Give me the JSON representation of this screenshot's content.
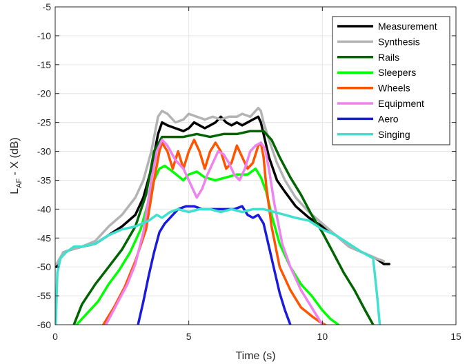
{
  "chart_data": {
    "type": "line",
    "title": "",
    "xlabel": "Time (s)",
    "ylabel": "L_AF - X (dB)",
    "ylabel_main": "L",
    "ylabel_sub": "AF",
    "ylabel_rest": " - X (dB)",
    "xlim": [
      0,
      15
    ],
    "ylim": [
      -60,
      -5
    ],
    "xticks": [
      0,
      5,
      10,
      15
    ],
    "yticks": [
      -60,
      -55,
      -50,
      -45,
      -40,
      -35,
      -30,
      -25,
      -20,
      -15,
      -10,
      -5
    ],
    "grid": true,
    "legend_position": "top-right",
    "series": [
      {
        "name": "Measurement",
        "color": "#000000",
        "x": [
          0.05,
          0.3,
          0.6,
          1.0,
          1.5,
          2.0,
          2.5,
          3.0,
          3.3,
          3.6,
          3.85,
          4.0,
          4.2,
          4.5,
          4.8,
          5.0,
          5.2,
          5.4,
          5.6,
          5.8,
          6.0,
          6.2,
          6.4,
          6.6,
          6.8,
          7.0,
          7.2,
          7.4,
          7.6,
          7.7,
          7.8,
          8.0,
          8.3,
          8.6,
          9.0,
          9.5,
          10.0,
          10.5,
          11.0,
          11.5,
          12.0,
          12.3,
          12.5
        ],
        "y": [
          -50,
          -47.5,
          -47,
          -46.5,
          -46,
          -44.5,
          -43,
          -41,
          -38,
          -33,
          -27,
          -25,
          -25.5,
          -26,
          -26.5,
          -26,
          -25,
          -25.5,
          -26,
          -25.5,
          -25,
          -24,
          -25,
          -25.5,
          -25,
          -25.5,
          -25,
          -24.5,
          -24,
          -25,
          -27,
          -31,
          -35,
          -37,
          -39.5,
          -41.5,
          -43,
          -44.5,
          -46.5,
          -47.5,
          -48.5,
          -49.5,
          -49.5
        ]
      },
      {
        "name": "Synthesis",
        "color": "#b3b3b3",
        "x": [
          0.05,
          0.3,
          0.6,
          1.0,
          1.5,
          2.0,
          2.5,
          3.0,
          3.3,
          3.6,
          3.85,
          4.0,
          4.2,
          4.5,
          4.8,
          5.0,
          5.3,
          5.6,
          5.9,
          6.2,
          6.5,
          6.8,
          7.0,
          7.3,
          7.6,
          7.7,
          7.8,
          8.0,
          8.3,
          8.6,
          9.0,
          9.5,
          10.0,
          10.5,
          11.0,
          11.5,
          12.0,
          12.3
        ],
        "y": [
          -49.5,
          -47.5,
          -47,
          -46.5,
          -45.5,
          -43,
          -41,
          -38,
          -35,
          -30,
          -24,
          -23,
          -23.5,
          -25,
          -24.5,
          -23.5,
          -24,
          -24.5,
          -24,
          -24.5,
          -24,
          -24,
          -23.5,
          -24,
          -22.5,
          -23,
          -25,
          -28,
          -32,
          -35,
          -38,
          -40.5,
          -42.5,
          -44.5,
          -46.5,
          -47.5,
          -48.5,
          -49
        ]
      },
      {
        "name": "Rails",
        "color": "#006400",
        "x": [
          0.7,
          1.0,
          1.5,
          2.0,
          2.5,
          3.0,
          3.4,
          3.7,
          4.0,
          4.3,
          4.8,
          5.3,
          5.8,
          6.3,
          6.8,
          7.3,
          7.8,
          8.1,
          8.4,
          8.8,
          9.2,
          9.6,
          10.0,
          10.4,
          10.8,
          11.2,
          11.6,
          11.9
        ],
        "y": [
          -60,
          -56.5,
          -53,
          -50,
          -47,
          -43,
          -37.5,
          -30,
          -27.5,
          -27.5,
          -27.5,
          -27,
          -27.5,
          -27,
          -27,
          -26.5,
          -26.5,
          -28,
          -31,
          -34.5,
          -37.5,
          -41,
          -44,
          -47.5,
          -51,
          -54,
          -57.5,
          -60
        ]
      },
      {
        "name": "Sleepers",
        "color": "#00ff00",
        "x": [
          0.8,
          1.2,
          1.6,
          2.0,
          2.4,
          2.8,
          3.2,
          3.5,
          3.7,
          3.9,
          4.1,
          4.4,
          4.8,
          5.0,
          5.3,
          5.6,
          6.0,
          6.4,
          6.8,
          7.2,
          7.5,
          7.7,
          7.9,
          8.1,
          8.4,
          8.8,
          9.2,
          9.6,
          10.0,
          10.3,
          10.6
        ],
        "y": [
          -60,
          -58,
          -56,
          -53,
          -50.5,
          -47.5,
          -43.5,
          -38.5,
          -35,
          -33,
          -32.5,
          -33.5,
          -35,
          -34,
          -33.5,
          -34.5,
          -35,
          -34.5,
          -34,
          -34,
          -33,
          -34.5,
          -37,
          -41,
          -46,
          -50,
          -53,
          -55,
          -57.5,
          -59,
          -60
        ]
      },
      {
        "name": "Wheels",
        "color": "#ff5500",
        "x": [
          1.8,
          2.2,
          2.6,
          3.0,
          3.4,
          3.7,
          3.9,
          4.0,
          4.2,
          4.4,
          4.6,
          4.8,
          5.0,
          5.2,
          5.4,
          5.6,
          5.8,
          6.0,
          6.2,
          6.4,
          6.6,
          6.8,
          7.0,
          7.2,
          7.4,
          7.6,
          7.7,
          7.8,
          7.9,
          8.1,
          8.4,
          8.8,
          9.2,
          9.6,
          9.9,
          10.1
        ],
        "y": [
          -60,
          -57,
          -53.5,
          -49,
          -43.5,
          -35,
          -30,
          -28.5,
          -30,
          -33,
          -30,
          -33,
          -30,
          -28,
          -30,
          -33,
          -30,
          -28.5,
          -30,
          -33,
          -32,
          -29,
          -31,
          -33,
          -32,
          -29,
          -28.5,
          -31,
          -36,
          -43,
          -50,
          -54,
          -57,
          -58.5,
          -59.5,
          -60
        ]
      },
      {
        "name": "Equipment",
        "color": "#ee82ee",
        "x": [
          1.9,
          2.3,
          2.7,
          3.0,
          3.3,
          3.6,
          3.8,
          4.0,
          4.2,
          4.5,
          4.8,
          5.1,
          5.3,
          5.5,
          5.7,
          5.9,
          6.1,
          6.3,
          6.5,
          6.7,
          6.9,
          7.1,
          7.3,
          7.5,
          7.7,
          7.85,
          8.0,
          8.2,
          8.5,
          8.8,
          9.2,
          9.6,
          10.0
        ],
        "y": [
          -60,
          -56.5,
          -53,
          -49.5,
          -44,
          -35,
          -30,
          -28,
          -29,
          -31.5,
          -33,
          -36,
          -38,
          -36.5,
          -34,
          -32,
          -30,
          -30.5,
          -32,
          -34,
          -35,
          -33,
          -30,
          -29,
          -28.5,
          -29.5,
          -33,
          -39,
          -46,
          -50,
          -54,
          -57,
          -60
        ]
      },
      {
        "name": "Aero",
        "color": "#1a1adc",
        "x": [
          3.1,
          3.3,
          3.5,
          3.7,
          3.9,
          4.1,
          4.3,
          4.6,
          4.9,
          5.2,
          5.5,
          5.8,
          6.1,
          6.4,
          6.7,
          7.0,
          7.2,
          7.4,
          7.6,
          7.8,
          8.0,
          8.2,
          8.4,
          8.6,
          8.8
        ],
        "y": [
          -60,
          -56,
          -51.5,
          -47.5,
          -44,
          -42.5,
          -41.5,
          -40,
          -39.5,
          -39.5,
          -40,
          -40,
          -40,
          -40,
          -40,
          -39.5,
          -41,
          -41.5,
          -41,
          -42.5,
          -46.5,
          -50.5,
          -54.5,
          -57.5,
          -60
        ]
      },
      {
        "name": "Singing",
        "color": "#40e0d0",
        "x": [
          0.02,
          0.08,
          0.2,
          0.4,
          0.7,
          1.0,
          1.5,
          2.0,
          2.5,
          3.0,
          3.5,
          3.8,
          4.0,
          4.3,
          4.6,
          5.0,
          5.4,
          5.8,
          6.2,
          6.6,
          7.0,
          7.4,
          7.8,
          8.2,
          8.6,
          9.0,
          9.5,
          10.0,
          10.5,
          11.0,
          11.5,
          11.9,
          12.05,
          12.15
        ],
        "y": [
          -60,
          -51,
          -48.5,
          -47.5,
          -46.5,
          -46.5,
          -46,
          -44.5,
          -43.5,
          -43,
          -42,
          -41,
          -41.5,
          -40.5,
          -40,
          -40.5,
          -40,
          -40,
          -40.5,
          -40,
          -40.5,
          -40,
          -40,
          -40.5,
          -41,
          -41.5,
          -42,
          -43.5,
          -44.5,
          -46,
          -47.5,
          -48.5,
          -55,
          -60
        ]
      }
    ]
  }
}
